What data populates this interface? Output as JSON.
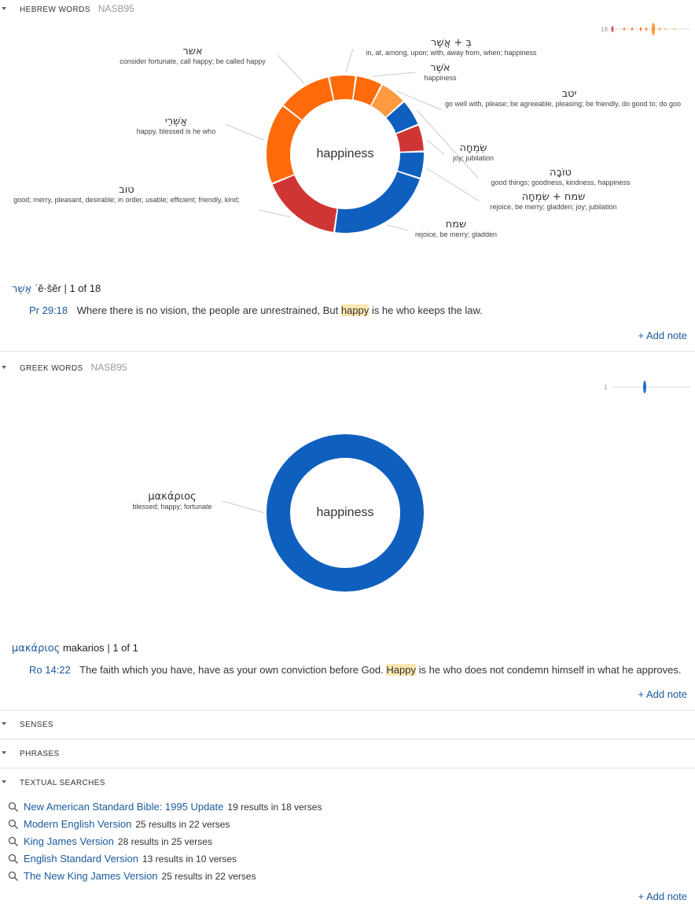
{
  "hebrew": {
    "title": "HEBREW WORDS",
    "version": "NASB95",
    "center": "happiness",
    "spark_count": "18",
    "labels": [
      {
        "word": "אשר",
        "gloss": "consider fortunate, call happy; be called happy"
      },
      {
        "word": "בְּ + אֲשֶׁר",
        "gloss": "in, at, among, upon; with, away from, when; happiness"
      },
      {
        "word": "אֹשֶׁר",
        "gloss": "happiness"
      },
      {
        "word": "יטב",
        "gloss": "go well with, please; be agreeable, pleasing; be friendly, do good to; do goo"
      },
      {
        "word": "אַשְׁרֵי",
        "gloss": "happy, blessed is he who"
      },
      {
        "word": "שִׂמְחָה",
        "gloss": "joy; jubilation"
      },
      {
        "word": "טוֹבָה",
        "gloss": "good things; goodness, kindness, happiness"
      },
      {
        "word": "טוב",
        "gloss": "good; merry, pleasant, desirable; in order, usable; efficient; friendly, kind;"
      },
      {
        "word": "שמח + שִׂמְחָה",
        "gloss": "rejoice, be merry; gladden; joy; jubilation"
      },
      {
        "word": "שמח",
        "gloss": "rejoice, be merry; gladden"
      }
    ],
    "lemma": "אֶשֶׁר",
    "translit": "ʾĕ·šĕr",
    "counter": "1 of 18",
    "verse_ref": "Pr 29:18",
    "verse_pre": "Where there is no vision, the people are unrestrained, But",
    "verse_hl": "happy",
    "verse_post": "is he who keeps the law.",
    "add_note": "+ Add note"
  },
  "greek": {
    "title": "GREEK WORDS",
    "version": "NASB95",
    "center": "happiness",
    "spark_count": "1",
    "label_word": "μακάριος",
    "label_gloss": "blessed; happy; fortunate",
    "lemma": "μακάριος",
    "translit": "makarios",
    "counter": "1 of 1",
    "verse_ref": "Ro 14:22",
    "verse_pre": "The faith which you have, have as your own conviction before God.",
    "verse_hl": "Happy",
    "verse_post": "is he who does not condemn himself in what he approves.",
    "add_note": "+ Add note"
  },
  "senses": {
    "title": "SENSES"
  },
  "phrases": {
    "title": "PHRASES"
  },
  "textual": {
    "title": "TEXTUAL SEARCHES",
    "items": [
      {
        "name": "New American Standard Bible: 1995 Update",
        "count": "19 results in 18 verses"
      },
      {
        "name": "Modern English Version",
        "count": "25 results in 22 verses"
      },
      {
        "name": "King James Version",
        "count": "28 results in 25 verses"
      },
      {
        "name": "English Standard Version",
        "count": "13 results in 10 verses"
      },
      {
        "name": "The New King James Version",
        "count": "25 results in 22 verses"
      }
    ],
    "add_note": "+ Add note"
  },
  "chart_data": [
    {
      "type": "pie",
      "title": "happiness",
      "categories": [
        "אֲשֶׁר בְּ",
        "אֹשֶׁר",
        "יטב",
        "שִׂמְחָה",
        "שמח+שִׂמְחָה",
        "טוֹבָה",
        "שמח",
        "טוב",
        "אַשְׁרֵי",
        "אשר"
      ],
      "values": [
        1,
        1,
        1,
        1,
        1,
        1,
        4,
        3,
        3,
        2
      ],
      "colors": [
        "#ff6a0a",
        "#ff6a0a",
        "#ff9a40",
        "#0f5fbf",
        "#cf3535",
        "#0f5fbf",
        "#0f5fbf",
        "#cf3535",
        "#ff6a0a",
        "#ff6a0a"
      ]
    },
    {
      "type": "pie",
      "title": "happiness",
      "categories": [
        "μακάριος"
      ],
      "values": [
        1
      ],
      "colors": [
        "#0f5fbf"
      ]
    }
  ]
}
